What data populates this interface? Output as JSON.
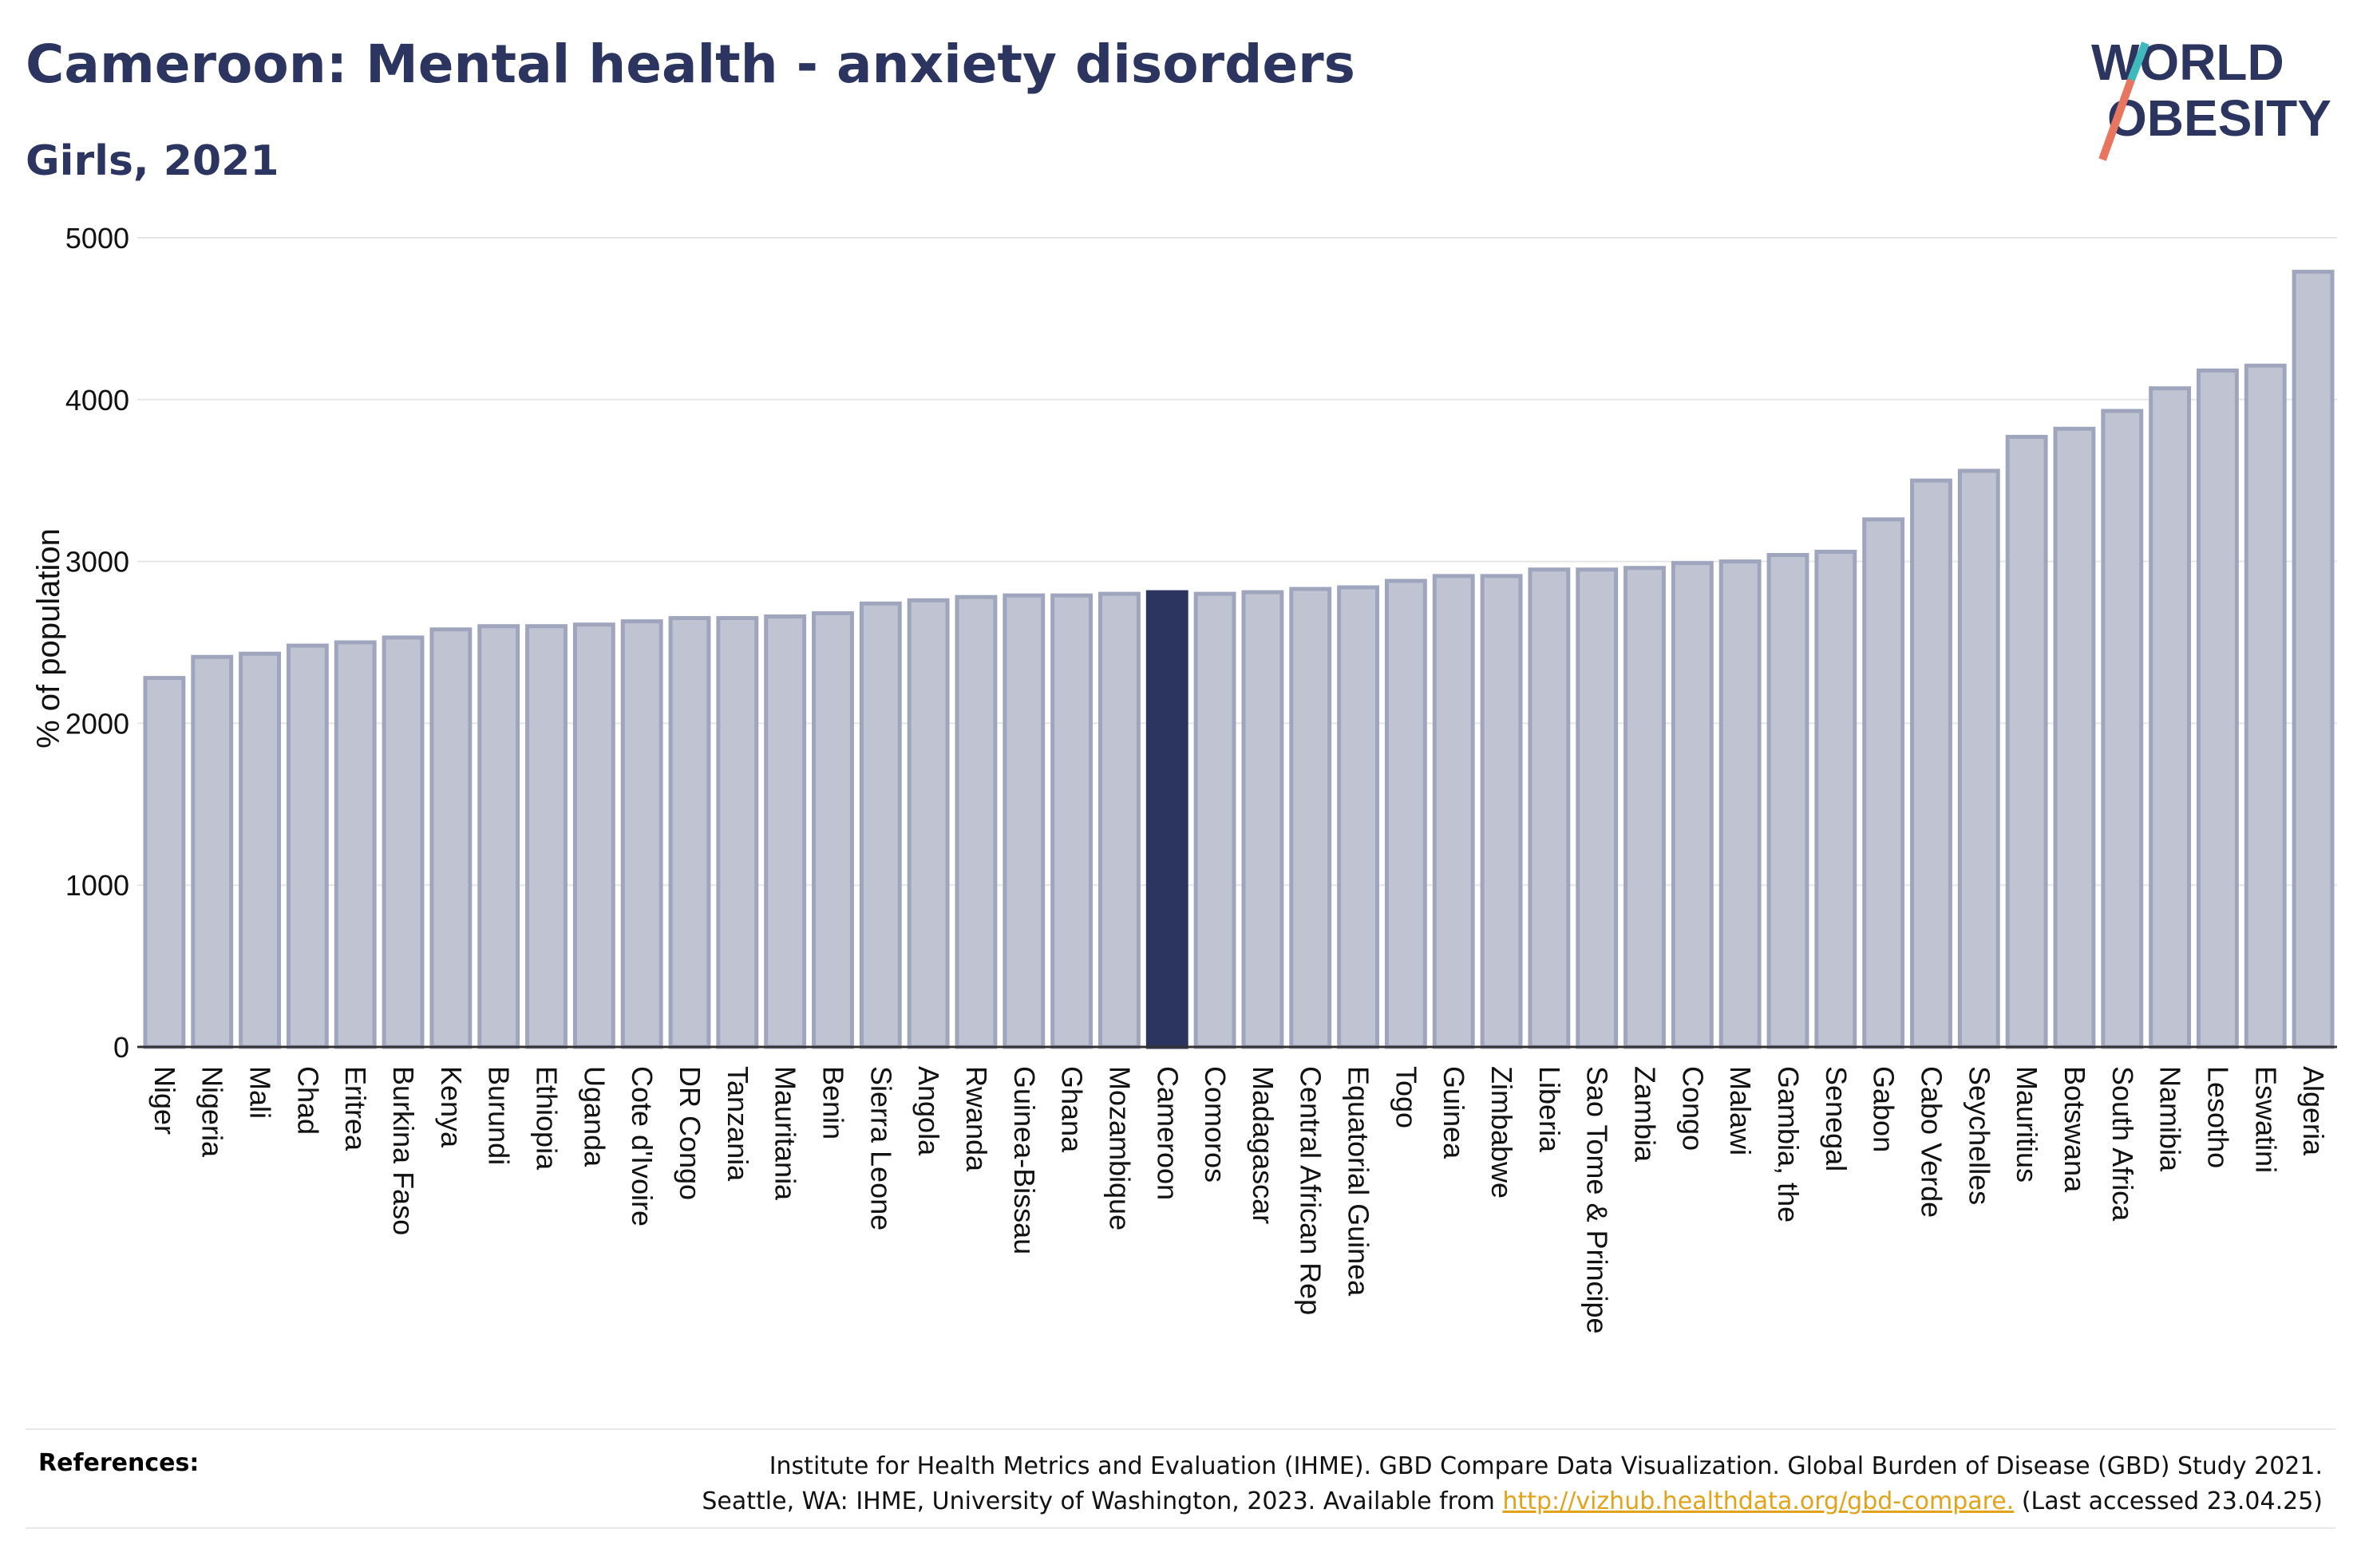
{
  "header": {
    "title": "Cameroon: Mental health - anxiety disorders",
    "subtitle": "Girls, 2021"
  },
  "logo": {
    "line1": "WORLD",
    "line2": "OBESITY"
  },
  "chart_data": {
    "type": "bar",
    "title": "Cameroon: Mental health - anxiety disorders",
    "subtitle": "Girls, 2021",
    "ylabel": "% of population",
    "ylim": [
      0,
      5000
    ],
    "yticks": [
      0,
      1000,
      2000,
      3000,
      4000,
      5000
    ],
    "grid": true,
    "highlight": "Cameroon",
    "colors": {
      "bar": "#c0c4d2",
      "bar_edge": "#9fa5bd",
      "highlight": "#2b3560",
      "grid": "#e6e6e6",
      "axis": "#333333"
    },
    "categories": [
      "Niger",
      "Nigeria",
      "Mali",
      "Chad",
      "Eritrea",
      "Burkina Faso",
      "Kenya",
      "Burundi",
      "Ethiopia",
      "Uganda",
      "Cote d'Ivoire",
      "DR Congo",
      "Tanzania",
      "Mauritania",
      "Benin",
      "Sierra Leone",
      "Angola",
      "Rwanda",
      "Guinea-Bissau",
      "Ghana",
      "Mozambique",
      "Cameroon",
      "Comoros",
      "Madagascar",
      "Central African Rep",
      "Equatorial Guinea",
      "Togo",
      "Guinea",
      "Zimbabwe",
      "Liberia",
      "Sao Tome & Principe",
      "Zambia",
      "Congo",
      "Malawi",
      "Gambia, the",
      "Senegal",
      "Gabon",
      "Cabo Verde",
      "Seychelles",
      "Mauritius",
      "Botswana",
      "South Africa",
      "Namibia",
      "Lesotho",
      "Eswatini",
      "Algeria"
    ],
    "values": [
      2280,
      2410,
      2430,
      2480,
      2500,
      2530,
      2580,
      2600,
      2600,
      2610,
      2630,
      2650,
      2650,
      2660,
      2680,
      2740,
      2760,
      2780,
      2790,
      2790,
      2800,
      2810,
      2800,
      2810,
      2830,
      2840,
      2880,
      2910,
      2910,
      2950,
      2950,
      2960,
      2990,
      3000,
      3040,
      3060,
      3260,
      3500,
      3560,
      3770,
      3820,
      3930,
      4070,
      4180,
      4210,
      4790
    ]
  },
  "footer": {
    "references_label": "References:",
    "line1": "Institute for Health Metrics and Evaluation (IHME). GBD Compare Data Visualization. Global Burden of Disease (GBD) Study 2021.",
    "line2_prefix": "Seattle, WA: IHME, University of Washington, 2023. Available from ",
    "link": "http://vizhub.healthdata.org/gbd-compare.",
    "line2_suffix": " (Last accessed 23.04.25)"
  }
}
